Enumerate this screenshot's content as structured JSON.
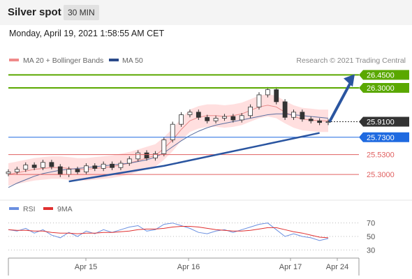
{
  "header": {
    "title": "Silver spot",
    "timeframe": "30 MIN"
  },
  "datetime": "Monday, April 19, 2021 1:58:55 AM CET",
  "legend": {
    "bollinger": "MA 20 + Bollinger Bands",
    "ma50": "MA 50"
  },
  "copyright": "Research © 2021 Trading Central",
  "colors": {
    "resistance": "#5aa800",
    "current": "#333333",
    "pivot": "#1f6ae0",
    "support": "#e06060",
    "rsi": "#6a8fe0",
    "rsi_ma": "#e03030",
    "candle_up": "#ffffff",
    "candle_down": "#333333",
    "bands": "#ffd2d2",
    "arrow": "#2a55a0"
  },
  "chart_data": [
    {
      "type": "candlestick",
      "title": "Silver spot",
      "timeframe": "30 MIN",
      "ylim": [
        25.1,
        26.55
      ],
      "x_tick_labels": [
        "Apr 15",
        "Apr 16",
        "Apr 17",
        "Apr 24"
      ],
      "levels": [
        {
          "label": "26.4500",
          "value": 26.45,
          "kind": "resistance"
        },
        {
          "label": "26.3000",
          "value": 26.3,
          "kind": "resistance"
        },
        {
          "label": "25.9100",
          "value": 25.91,
          "kind": "current"
        },
        {
          "label": "25.7300",
          "value": 25.73,
          "kind": "pivot"
        },
        {
          "label": "25.5300",
          "value": 25.53,
          "kind": "support"
        },
        {
          "label": "25.3000",
          "value": 25.3,
          "kind": "support"
        }
      ],
      "series": [
        {
          "name": "MA 20 + Bollinger Bands",
          "values": [
            25.3,
            25.32,
            25.34,
            25.36,
            25.37,
            25.38,
            25.38,
            25.37,
            25.36,
            25.36,
            25.37,
            25.38,
            25.39,
            25.41,
            25.43,
            25.46,
            25.49,
            25.52,
            25.6,
            25.7,
            25.82,
            25.92,
            25.96,
            25.98,
            25.98,
            25.97,
            25.98,
            26.0,
            26.04,
            26.08,
            26.1,
            26.08,
            26.02,
            25.97,
            25.94,
            25.93,
            25.92,
            25.92
          ]
        },
        {
          "name": "MA 50",
          "values": [
            25.15,
            25.2,
            25.24,
            25.28,
            25.31,
            25.33,
            25.35,
            25.36,
            25.37,
            25.38,
            25.39,
            25.4,
            25.41,
            25.42,
            25.43,
            25.45,
            25.47,
            25.5,
            25.55,
            25.62,
            25.69,
            25.75,
            25.8,
            25.84,
            25.87,
            25.89,
            25.91,
            25.93,
            25.95,
            25.97,
            25.99,
            26.0,
            26.0,
            25.99,
            25.98,
            25.97,
            25.96,
            25.95
          ]
        }
      ],
      "candles": [
        25.33,
        25.36,
        25.41,
        25.38,
        25.44,
        25.39,
        25.3,
        25.36,
        25.33,
        25.4,
        25.37,
        25.42,
        25.38,
        25.43,
        25.48,
        25.55,
        25.49,
        25.54,
        25.7,
        25.88,
        25.99,
        26.02,
        25.96,
        25.92,
        25.95,
        25.97,
        25.93,
        25.98,
        26.08,
        26.22,
        26.28,
        26.14,
        25.96,
        26.02,
        25.94,
        25.92,
        25.9,
        25.91
      ]
    },
    {
      "type": "line",
      "series": [
        {
          "name": "RSI",
          "values": [
            60,
            58,
            62,
            55,
            60,
            52,
            48,
            56,
            50,
            58,
            54,
            60,
            56,
            60,
            64,
            66,
            58,
            60,
            68,
            70,
            66,
            62,
            56,
            54,
            58,
            60,
            56,
            60,
            64,
            68,
            70,
            60,
            50,
            54,
            50,
            48,
            44,
            47
          ]
        },
        {
          "name": "9MA",
          "values": [
            60,
            59,
            59,
            58,
            58,
            56,
            55,
            55,
            54,
            55,
            55,
            56,
            56,
            57,
            58,
            60,
            61,
            61,
            62,
            64,
            65,
            65,
            64,
            62,
            60,
            59,
            58,
            58,
            59,
            61,
            63,
            63,
            60,
            57,
            55,
            52,
            49,
            48
          ]
        }
      ],
      "ylim": [
        20,
        80
      ],
      "y_tick_labels": [
        "70",
        "50",
        "30"
      ],
      "y_tick_values": [
        70,
        50,
        30
      ]
    }
  ]
}
